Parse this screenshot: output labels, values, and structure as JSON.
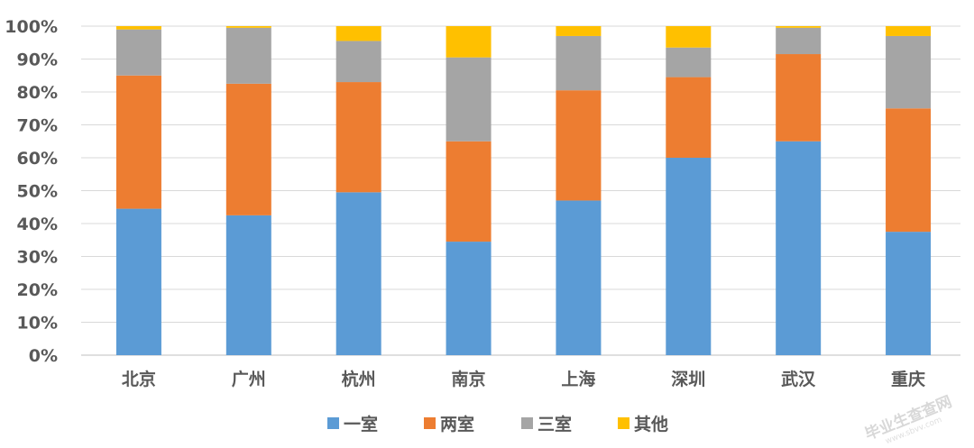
{
  "chart_data": {
    "type": "bar",
    "stacked": true,
    "percent": true,
    "title": "",
    "xlabel": "",
    "ylabel": "",
    "ylim": [
      0,
      100
    ],
    "y_ticks": [
      "0%",
      "10%",
      "20%",
      "30%",
      "40%",
      "50%",
      "60%",
      "70%",
      "80%",
      "90%",
      "100%"
    ],
    "grid": true,
    "legend_position": "bottom",
    "categories": [
      "北京",
      "广州",
      "杭州",
      "南京",
      "上海",
      "深圳",
      "武汉",
      "重庆"
    ],
    "series": [
      {
        "name": "一室",
        "color": "#5b9bd5",
        "values": [
          44.5,
          42.5,
          49.5,
          34.5,
          47,
          60,
          65,
          37.5
        ]
      },
      {
        "name": "两室",
        "color": "#ed7d31",
        "values": [
          40.5,
          40,
          33.5,
          30.5,
          33.5,
          24.5,
          26.5,
          37.5
        ]
      },
      {
        "name": "三室",
        "color": "#a5a5a5",
        "values": [
          14,
          17,
          12.5,
          25.5,
          16.5,
          9,
          8,
          22
        ]
      },
      {
        "name": "其他",
        "color": "#ffc000",
        "values": [
          1,
          0.5,
          4.5,
          9.5,
          3,
          6.5,
          0.5,
          3
        ]
      }
    ]
  },
  "watermark": {
    "text": "毕业生查查网",
    "sub": "www.sbvv.com"
  }
}
